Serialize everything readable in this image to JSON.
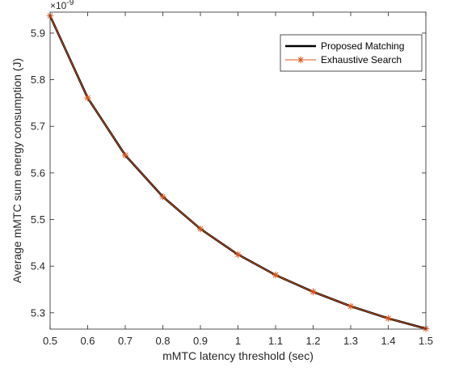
{
  "chart_data": {
    "type": "line",
    "xlabel": "mMTC latency threshold (sec)",
    "ylabel": "Average mMTC sum energy consumption (J)",
    "y_exponent_label": "×10",
    "y_exponent_power": "-9",
    "xlim": [
      0.5,
      1.5
    ],
    "ylim": [
      5.265,
      5.945
    ],
    "x_ticks": [
      "0.5",
      "0.6",
      "0.7",
      "0.8",
      "0.9",
      "1",
      "1.1",
      "1.2",
      "1.3",
      "1.4",
      "1.5"
    ],
    "y_ticks": [
      "5.3",
      "5.4",
      "5.5",
      "5.6",
      "5.7",
      "5.8",
      "5.9"
    ],
    "grid": false,
    "legend_position": "top-right",
    "x": [
      0.5,
      0.6,
      0.7,
      0.8,
      0.9,
      1.0,
      1.1,
      1.2,
      1.3,
      1.4,
      1.5
    ],
    "series": [
      {
        "name": "Proposed Matching",
        "color": "#000000",
        "marker": "none",
        "values": [
          5.937,
          5.761,
          5.638,
          5.549,
          5.48,
          5.425,
          5.381,
          5.345,
          5.314,
          5.288,
          5.266
        ]
      },
      {
        "name": "Exhaustive Search",
        "color": "#D95319",
        "marker": "asterisk",
        "values": [
          5.937,
          5.761,
          5.638,
          5.549,
          5.48,
          5.425,
          5.381,
          5.345,
          5.314,
          5.288,
          5.266
        ]
      }
    ]
  }
}
